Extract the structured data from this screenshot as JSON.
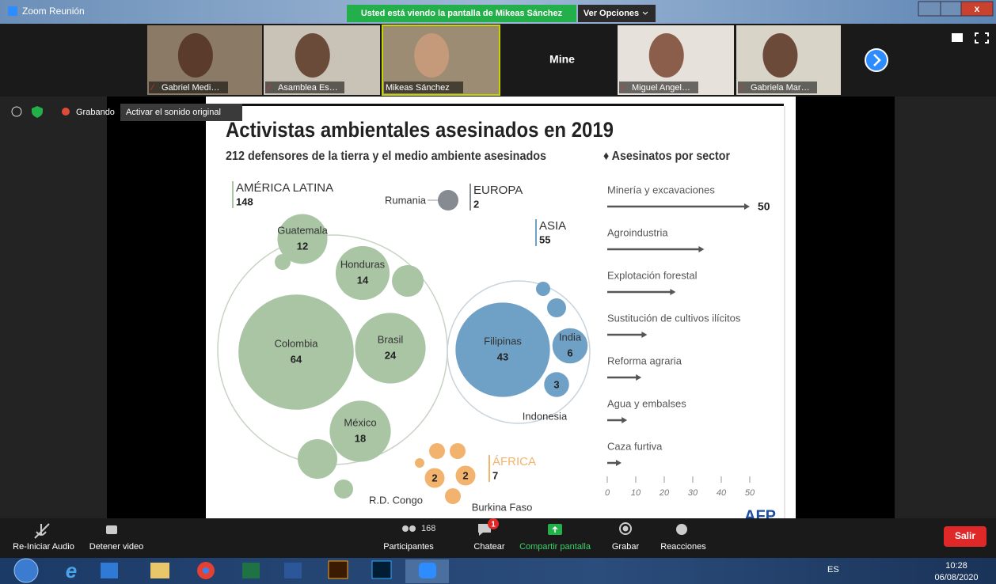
{
  "window": {
    "title": "Zoom Reunión",
    "banner": "Usted está viendo la pantalla de Mikeas Sánchez",
    "options": "Ver Opciones"
  },
  "participants": [
    "Gabriel Medi…",
    "Asamblea Es…",
    "Mikeas Sánchez",
    "Miguel Angel…",
    "Gabriela Mar…"
  ],
  "self_label": "Mine",
  "status": {
    "recording": "Grabando",
    "sound": "Activar el sonido original"
  },
  "slide": {
    "title": "Activistas ambientales asesinados en 2019",
    "subtitle": "212 defensores de la tierra y el medio ambiente asesinados",
    "regions": [
      {
        "name": "AMÉRICA LATINA",
        "total": 148
      },
      {
        "name": "EUROPA",
        "total": 2
      },
      {
        "name": "ASIA",
        "total": 55
      },
      {
        "name": "ÁFRICA",
        "total": 7
      }
    ],
    "countries": [
      {
        "name": "Colombia",
        "value": 64
      },
      {
        "name": "Brasil",
        "value": 24
      },
      {
        "name": "México",
        "value": 18
      },
      {
        "name": "Honduras",
        "value": 14
      },
      {
        "name": "Guatemala",
        "value": 12
      },
      {
        "name": "Filipinas",
        "value": 43
      },
      {
        "name": "India",
        "value": 6
      },
      {
        "name": "Indonesia",
        "value": 3
      },
      {
        "name": "R.D. Congo",
        "value": 2
      },
      {
        "name": "Burkina Faso",
        "value": 2
      }
    ],
    "romania": "Rumania",
    "sector_title": "♦ Asesinatos por sector",
    "sectors": [
      {
        "name": "Minería y excavaciones",
        "value": 50
      },
      {
        "name": "Agroindustria",
        "value": 34
      },
      {
        "name": "Explotación forestal",
        "value": 24
      },
      {
        "name": "Sustitución de cultivos ilícitos",
        "value": 14
      },
      {
        "name": "Reforma agraria",
        "value": 12
      },
      {
        "name": "Agua y embalses",
        "value": 7
      },
      {
        "name": "Caza furtiva",
        "value": 5
      }
    ],
    "sector_ticks": [
      0,
      10,
      20,
      30,
      40,
      50
    ],
    "logo": "AFP"
  },
  "toolbar": {
    "audio": "Re-Iniciar Audio",
    "video": "Detener video",
    "participants": "Participantes",
    "participant_count": 168,
    "chat": "Chatear",
    "chat_badge": 1,
    "share": "Compartir pantalla",
    "record": "Grabar",
    "reactions": "Reacciones",
    "leave": "Salir"
  },
  "taskbar": {
    "language": "ES",
    "time": "10:28",
    "date": "06/08/2020"
  }
}
